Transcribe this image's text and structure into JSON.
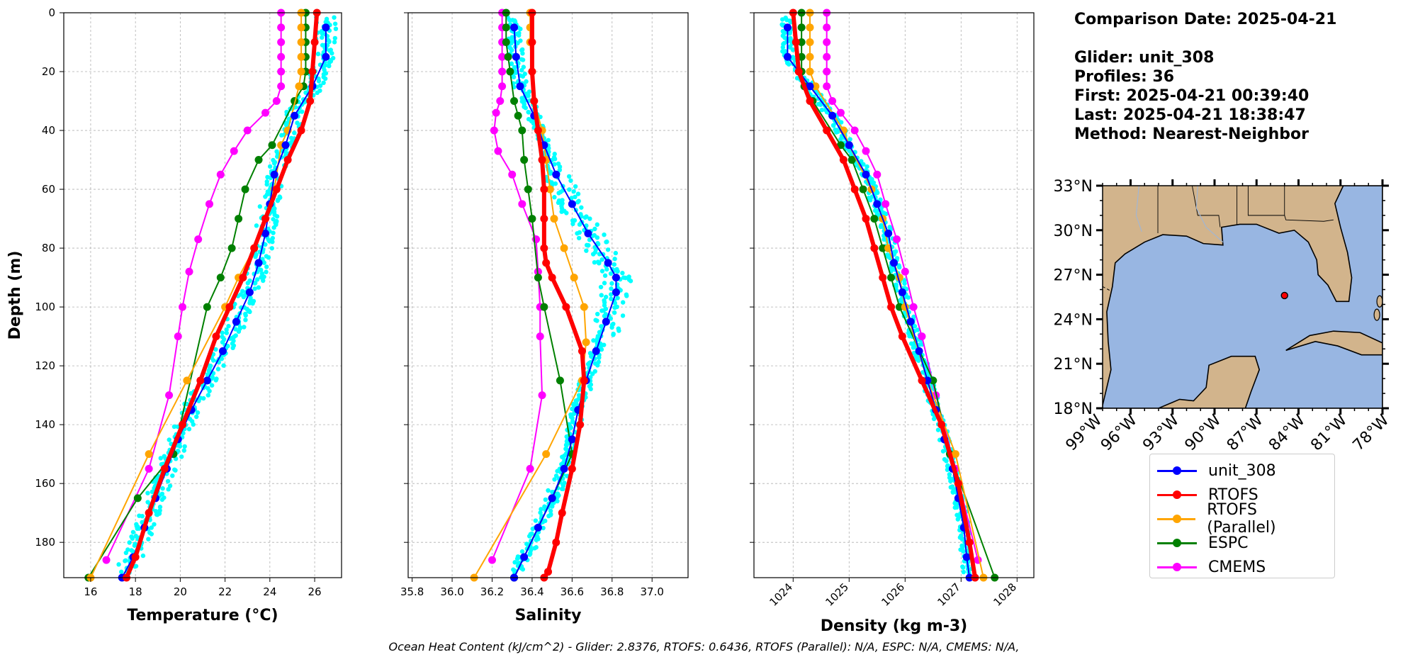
{
  "chart_data": [
    {
      "type": "line",
      "xlabel": "Temperature (°C)",
      "ylabel": "Depth (m)",
      "xlim": [
        14.8,
        27.2
      ],
      "ylim": [
        192,
        0
      ],
      "xticks": [
        16,
        18,
        20,
        22,
        24,
        26
      ],
      "yticks": [
        0,
        20,
        40,
        60,
        80,
        100,
        120,
        140,
        160,
        180
      ],
      "grid": true,
      "series": [
        {
          "name": "unit_308",
          "color": "#0000ff",
          "x": [
            26.5,
            26.5,
            25.9,
            25.1,
            24.7,
            24.2,
            24.0,
            23.8,
            23.5,
            23.1,
            22.5,
            21.9,
            21.2,
            20.5,
            19.9,
            19.4,
            18.9,
            18.4,
            17.9,
            17.4
          ],
          "y": [
            5,
            15,
            25,
            35,
            45,
            55,
            65,
            75,
            85,
            95,
            105,
            115,
            125,
            135,
            145,
            155,
            165,
            175,
            185,
            192
          ]
        },
        {
          "name": "RTOFS",
          "color": "#ff0000",
          "x": [
            26.1,
            26.0,
            25.9,
            25.8,
            25.4,
            24.8,
            24.3,
            23.8,
            23.3,
            22.8,
            22.2,
            21.6,
            20.9,
            20.1,
            19.3,
            18.6,
            18.0,
            17.6
          ],
          "y": [
            0,
            10,
            20,
            30,
            40,
            50,
            60,
            70,
            80,
            90,
            100,
            110,
            125,
            140,
            155,
            170,
            185,
            192
          ]
        },
        {
          "name": "RTOFS (Parallel)",
          "color": "#ffa500",
          "x": [
            25.4,
            25.4,
            25.4,
            25.4,
            25.4,
            25.3,
            24.8,
            24.5,
            24.2,
            23.8,
            23.3,
            22.6,
            22.0,
            20.3,
            18.6,
            16.0
          ],
          "y": [
            0,
            5,
            10,
            15,
            20,
            25,
            40,
            45,
            60,
            70,
            80,
            90,
            100,
            125,
            150,
            192
          ]
        },
        {
          "name": "ESPC",
          "color": "#008000",
          "x": [
            25.6,
            25.6,
            25.6,
            25.6,
            25.6,
            25.5,
            25.1,
            24.1,
            23.5,
            22.9,
            22.6,
            22.3,
            21.8,
            21.2,
            19.7,
            18.1,
            15.9
          ],
          "y": [
            0,
            5,
            10,
            15,
            20,
            25,
            30,
            45,
            50,
            60,
            70,
            80,
            90,
            100,
            150,
            165,
            192
          ]
        },
        {
          "name": "CMEMS",
          "color": "#ff00ff",
          "x": [
            24.5,
            24.5,
            24.5,
            24.5,
            24.5,
            24.5,
            24.3,
            23.8,
            23.0,
            22.4,
            21.8,
            21.3,
            20.8,
            20.4,
            20.1,
            19.9,
            19.5,
            18.6,
            16.7
          ],
          "y": [
            0,
            5,
            10,
            15,
            20,
            25,
            30,
            34,
            40,
            47,
            55,
            65,
            77,
            88,
            100,
            110,
            130,
            155,
            186
          ]
        }
      ]
    },
    {
      "type": "line",
      "xlabel": "Salinity",
      "ylabel": "",
      "xlim": [
        35.78,
        37.18
      ],
      "ylim": [
        192,
        0
      ],
      "xticks": [
        35.8,
        36.0,
        36.2,
        36.4,
        36.6,
        36.8,
        37.0
      ],
      "yticks": [
        0,
        20,
        40,
        60,
        80,
        100,
        120,
        140,
        160,
        180
      ],
      "grid": true,
      "series": [
        {
          "name": "unit_308",
          "color": "#0000ff",
          "x": [
            36.31,
            36.32,
            36.34,
            36.41,
            36.46,
            36.52,
            36.6,
            36.68,
            36.78,
            36.82,
            36.82,
            36.77,
            36.72,
            36.67,
            36.63,
            36.6,
            36.56,
            36.5,
            36.43,
            36.36,
            36.31
          ],
          "y": [
            5,
            15,
            25,
            35,
            45,
            55,
            65,
            75,
            85,
            90,
            95,
            105,
            115,
            125,
            135,
            145,
            155,
            165,
            175,
            185,
            192
          ]
        },
        {
          "name": "RTOFS",
          "color": "#ff0000",
          "x": [
            36.4,
            36.4,
            36.4,
            36.41,
            36.43,
            36.45,
            36.46,
            36.46,
            36.46,
            36.47,
            36.5,
            36.57,
            36.65,
            36.66,
            36.64,
            36.6,
            36.55,
            36.52,
            36.48,
            36.46
          ],
          "y": [
            0,
            10,
            20,
            30,
            40,
            50,
            60,
            70,
            80,
            85,
            90,
            100,
            115,
            125,
            140,
            155,
            170,
            180,
            190,
            192
          ]
        },
        {
          "name": "RTOFS (Parallel)",
          "color": "#ffa500",
          "x": [
            36.39,
            36.39,
            36.39,
            36.4,
            36.41,
            36.45,
            36.47,
            36.49,
            36.51,
            36.56,
            36.61,
            36.66,
            36.67,
            36.65,
            36.47,
            36.11
          ],
          "y": [
            0,
            5,
            10,
            20,
            30,
            40,
            50,
            60,
            70,
            80,
            90,
            100,
            112,
            125,
            150,
            192
          ]
        },
        {
          "name": "ESPC",
          "color": "#008000",
          "x": [
            36.27,
            36.27,
            36.27,
            36.28,
            36.29,
            36.31,
            36.33,
            36.35,
            36.36,
            36.38,
            36.4,
            36.43,
            36.46,
            36.54,
            36.6,
            36.5,
            36.31
          ],
          "y": [
            0,
            5,
            10,
            15,
            20,
            30,
            35,
            40,
            50,
            60,
            70,
            90,
            100,
            125,
            150,
            165,
            192
          ]
        },
        {
          "name": "CMEMS",
          "color": "#ff00ff",
          "x": [
            36.25,
            36.25,
            36.25,
            36.25,
            36.25,
            36.25,
            36.24,
            36.22,
            36.21,
            36.23,
            36.3,
            36.35,
            36.42,
            36.43,
            36.44,
            36.44,
            36.45,
            36.39,
            36.2
          ],
          "y": [
            0,
            5,
            10,
            15,
            20,
            25,
            30,
            34,
            40,
            47,
            55,
            65,
            77,
            88,
            100,
            110,
            130,
            155,
            186
          ]
        }
      ]
    },
    {
      "type": "line",
      "xlabel": "Density (kg m-3)",
      "ylabel": "",
      "xlim": [
        1023.3,
        1028.3
      ],
      "ylim": [
        192,
        0
      ],
      "xticks": [
        1024,
        1025,
        1026,
        1027,
        1028
      ],
      "yticks": [
        0,
        20,
        40,
        60,
        80,
        100,
        120,
        140,
        160,
        180
      ],
      "grid": true,
      "series": [
        {
          "name": "unit_308",
          "color": "#0000ff",
          "x": [
            1023.9,
            1023.9,
            1024.3,
            1024.7,
            1025.0,
            1025.3,
            1025.5,
            1025.7,
            1025.8,
            1025.95,
            1026.1,
            1026.25,
            1026.4,
            1026.55,
            1026.7,
            1026.85,
            1026.95,
            1027.05,
            1027.1,
            1027.15
          ],
          "y": [
            5,
            15,
            25,
            35,
            45,
            55,
            65,
            75,
            85,
            95,
            105,
            115,
            125,
            135,
            145,
            155,
            165,
            175,
            185,
            192
          ]
        },
        {
          "name": "RTOFS",
          "color": "#ff0000",
          "x": [
            1024.0,
            1024.05,
            1024.1,
            1024.3,
            1024.6,
            1024.9,
            1025.1,
            1025.3,
            1025.45,
            1025.6,
            1025.75,
            1025.95,
            1026.3,
            1026.65,
            1026.95,
            1027.15,
            1027.25
          ],
          "y": [
            0,
            10,
            20,
            30,
            40,
            50,
            60,
            70,
            80,
            90,
            100,
            110,
            125,
            140,
            160,
            180,
            192
          ]
        },
        {
          "name": "RTOFS (Parallel)",
          "color": "#ffa500",
          "x": [
            1024.3,
            1024.3,
            1024.3,
            1024.3,
            1024.3,
            1024.4,
            1024.9,
            1025.0,
            1025.4,
            1025.6,
            1025.7,
            1025.9,
            1026.0,
            1026.4,
            1026.9,
            1027.4
          ],
          "y": [
            0,
            5,
            10,
            15,
            20,
            25,
            40,
            45,
            60,
            70,
            80,
            90,
            100,
            125,
            150,
            192
          ]
        },
        {
          "name": "ESPC",
          "color": "#008000",
          "x": [
            1024.15,
            1024.15,
            1024.15,
            1024.15,
            1024.15,
            1024.2,
            1024.35,
            1024.85,
            1025.05,
            1025.25,
            1025.45,
            1025.6,
            1025.75,
            1025.9,
            1026.5,
            1026.8,
            1027.6
          ],
          "y": [
            0,
            5,
            10,
            15,
            20,
            25,
            30,
            45,
            50,
            60,
            70,
            80,
            90,
            100,
            125,
            150,
            192
          ]
        },
        {
          "name": "CMEMS",
          "color": "#ff00ff",
          "x": [
            1024.6,
            1024.6,
            1024.6,
            1024.6,
            1024.6,
            1024.6,
            1024.7,
            1024.85,
            1025.1,
            1025.3,
            1025.5,
            1025.65,
            1025.85,
            1026.0,
            1026.15,
            1026.3,
            1026.55,
            1026.9,
            1027.3
          ],
          "y": [
            0,
            5,
            10,
            15,
            20,
            25,
            30,
            34,
            40,
            47,
            55,
            65,
            77,
            88,
            100,
            110,
            130,
            155,
            186
          ]
        }
      ]
    }
  ],
  "info": {
    "comparison_date": "Comparison Date: 2025-04-21",
    "glider": "Glider: unit_308",
    "profiles": "Profiles: 36",
    "first": "First: 2025-04-21 00:39:40",
    "last": "Last: 2025-04-21 18:38:47",
    "method": "Method: Nearest-Neighbor"
  },
  "map": {
    "lat_labels": [
      "33°N",
      "30°N",
      "27°N",
      "24°N",
      "21°N",
      "18°N"
    ],
    "lon_labels": [
      "99°W",
      "96°W",
      "93°W",
      "90°W",
      "87°W",
      "84°W",
      "81°W",
      "78°W"
    ],
    "glider_location": {
      "lon": -85.0,
      "lat": 25.6
    },
    "land_color": "#d2b48c",
    "ocean_color": "#98b6e2"
  },
  "legend": [
    {
      "label": "unit_308",
      "color": "#0000ff"
    },
    {
      "label": "RTOFS",
      "color": "#ff0000"
    },
    {
      "label": "RTOFS (Parallel)",
      "color": "#ffa500"
    },
    {
      "label": "ESPC",
      "color": "#008000"
    },
    {
      "label": "CMEMS",
      "color": "#ff00ff"
    }
  ],
  "footer": "Ocean Heat Content (kJ/cm^2) - Glider: 2.8376,  RTOFS: 0.6436,  RTOFS (Parallel): N/A,  ESPC: N/A,  CMEMS: N/A,"
}
